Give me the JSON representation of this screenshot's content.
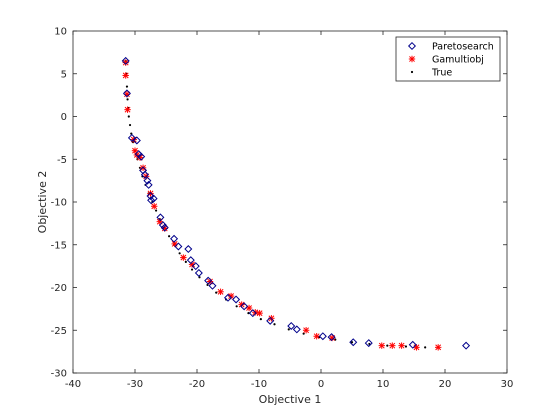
{
  "chart_data": {
    "type": "scatter",
    "title": "",
    "xlabel": "Objective 1",
    "ylabel": "Objective 2",
    "xlim": [
      -40,
      30
    ],
    "ylim": [
      -30,
      10
    ],
    "xticks": [
      -40,
      -30,
      -20,
      -10,
      0,
      10,
      20,
      30
    ],
    "yticks": [
      -30,
      -25,
      -20,
      -15,
      -10,
      -5,
      0,
      5,
      10
    ],
    "grid": false,
    "legend_position": "top-right",
    "series": [
      {
        "name": "Paretosearch",
        "marker": "diamond",
        "color": "#00008b",
        "points": [
          [
            -31.5,
            6.5
          ],
          [
            -31.3,
            2.7
          ],
          [
            -30.5,
            -2.5
          ],
          [
            -29.7,
            -2.8
          ],
          [
            -29.4,
            -4.4
          ],
          [
            -29.0,
            -4.7
          ],
          [
            -28.7,
            -6.3
          ],
          [
            -28.4,
            -6.8
          ],
          [
            -28.0,
            -7.5
          ],
          [
            -27.8,
            -8.0
          ],
          [
            -27.5,
            -9.3
          ],
          [
            -27.4,
            -9.8
          ],
          [
            -27.0,
            -9.6
          ],
          [
            -25.9,
            -11.8
          ],
          [
            -25.5,
            -12.7
          ],
          [
            -25.2,
            -13.0
          ],
          [
            -23.7,
            -14.3
          ],
          [
            -23.0,
            -15.2
          ],
          [
            -21.4,
            -15.5
          ],
          [
            -21.0,
            -16.8
          ],
          [
            -20.2,
            -17.5
          ],
          [
            -19.7,
            -18.3
          ],
          [
            -18.2,
            -19.2
          ],
          [
            -17.5,
            -19.8
          ],
          [
            -15.0,
            -21.2
          ],
          [
            -13.7,
            -21.4
          ],
          [
            -12.4,
            -22.2
          ],
          [
            -11.0,
            -23.0
          ],
          [
            -8.2,
            -23.9
          ],
          [
            -4.8,
            -24.5
          ],
          [
            -3.9,
            -24.9
          ],
          [
            0.3,
            -25.7
          ],
          [
            1.7,
            -25.8
          ],
          [
            5.2,
            -26.4
          ],
          [
            7.7,
            -26.5
          ],
          [
            14.8,
            -26.7
          ],
          [
            23.4,
            -26.8
          ]
        ]
      },
      {
        "name": "Gamultiobj",
        "marker": "asterisk",
        "color": "#ff0000",
        "points": [
          [
            -31.5,
            6.3
          ],
          [
            -31.5,
            4.8
          ],
          [
            -31.3,
            2.6
          ],
          [
            -31.2,
            0.8
          ],
          [
            -30.2,
            -2.7
          ],
          [
            -30.0,
            -4.0
          ],
          [
            -29.7,
            -4.5
          ],
          [
            -29.2,
            -4.8
          ],
          [
            -28.7,
            -6.0
          ],
          [
            -28.2,
            -7.0
          ],
          [
            -27.5,
            -9.0
          ],
          [
            -26.9,
            -10.5
          ],
          [
            -26.0,
            -12.3
          ],
          [
            -25.2,
            -13.1
          ],
          [
            -23.6,
            -14.9
          ],
          [
            -22.2,
            -16.5
          ],
          [
            -20.8,
            -17.3
          ],
          [
            -17.9,
            -19.3
          ],
          [
            -16.2,
            -20.5
          ],
          [
            -14.5,
            -21.0
          ],
          [
            -12.8,
            -22.0
          ],
          [
            -11.6,
            -22.4
          ],
          [
            -10.6,
            -22.9
          ],
          [
            -9.9,
            -23.0
          ],
          [
            -8.0,
            -23.6
          ],
          [
            -2.4,
            -25.0
          ],
          [
            -0.7,
            -25.7
          ],
          [
            1.8,
            -25.9
          ],
          [
            9.8,
            -26.8
          ],
          [
            11.5,
            -26.8
          ],
          [
            13.0,
            -26.8
          ],
          [
            15.4,
            -27.0
          ],
          [
            18.9,
            -27.0
          ]
        ]
      },
      {
        "name": "True",
        "marker": "dot",
        "color": "#000000",
        "points": [
          [
            -31.5,
            6.5
          ],
          [
            -31.4,
            5.0
          ],
          [
            -31.3,
            3.5
          ],
          [
            -31.2,
            2.0
          ],
          [
            -31.1,
            1.0
          ],
          [
            -31.0,
            0.0
          ],
          [
            -30.8,
            -1.0
          ],
          [
            -30.6,
            -2.0
          ],
          [
            -30.3,
            -3.0
          ],
          [
            -30.0,
            -4.0
          ],
          [
            -29.6,
            -5.0
          ],
          [
            -29.2,
            -6.0
          ],
          [
            -28.8,
            -7.0
          ],
          [
            -28.3,
            -8.0
          ],
          [
            -27.8,
            -9.0
          ],
          [
            -27.2,
            -10.0
          ],
          [
            -26.6,
            -11.0
          ],
          [
            -26.0,
            -12.0
          ],
          [
            -25.3,
            -13.0
          ],
          [
            -24.5,
            -14.0
          ],
          [
            -23.7,
            -15.0
          ],
          [
            -22.8,
            -16.0
          ],
          [
            -21.8,
            -17.0
          ],
          [
            -20.8,
            -17.9
          ],
          [
            -19.6,
            -18.8
          ],
          [
            -18.3,
            -19.7
          ],
          [
            -16.9,
            -20.6
          ],
          [
            -15.3,
            -21.4
          ],
          [
            -13.6,
            -22.2
          ],
          [
            -11.7,
            -23.0
          ],
          [
            -9.7,
            -23.7
          ],
          [
            -7.5,
            -24.3
          ],
          [
            -5.2,
            -24.9
          ],
          [
            -2.8,
            -25.4
          ],
          [
            -0.3,
            -25.8
          ],
          [
            2.3,
            -26.1
          ],
          [
            5.0,
            -26.4
          ],
          [
            7.8,
            -26.6
          ],
          [
            10.7,
            -26.8
          ],
          [
            13.7,
            -26.9
          ],
          [
            16.8,
            -27.0
          ]
        ]
      }
    ]
  }
}
